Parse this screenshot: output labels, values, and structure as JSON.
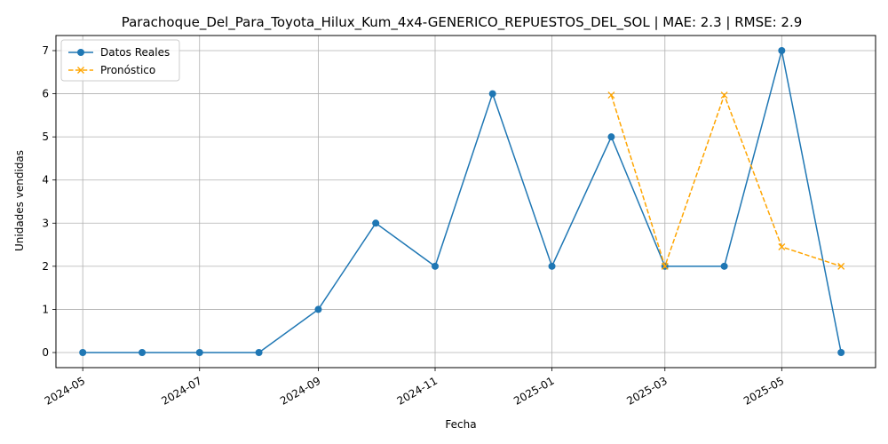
{
  "chart_data": {
    "type": "line",
    "title": "Parachoque_Del_Para_Toyota_Hilux_Kum_4x4-GENERICO_REPUESTOS_DEL_SOL | MAE: 2.3 | RMSE: 2.9",
    "xlabel": "Fecha",
    "ylabel": "Unidades vendidas",
    "ylim": [
      -0.35,
      7.35
    ],
    "xlim": [
      "2024-04-17",
      "2025-06-19"
    ],
    "x_ticks": [
      "2024-05",
      "2024-07",
      "2024-09",
      "2024-11",
      "2025-01",
      "2025-03",
      "2025-05"
    ],
    "y_ticks": [
      0,
      1,
      2,
      3,
      4,
      5,
      6,
      7
    ],
    "grid": true,
    "legend_position": "top-left",
    "series": [
      {
        "name": "Datos Reales",
        "color": "#1f77b4",
        "marker": "circle",
        "line_style": "solid",
        "x": [
          "2024-05-01",
          "2024-06-01",
          "2024-07-01",
          "2024-08-01",
          "2024-09-01",
          "2024-10-01",
          "2024-11-01",
          "2024-12-01",
          "2025-01-01",
          "2025-02-01",
          "2025-03-01",
          "2025-04-01",
          "2025-05-01",
          "2025-06-01"
        ],
        "values": [
          0,
          0,
          0,
          0,
          1,
          3,
          2,
          6,
          2,
          5,
          2,
          2,
          7,
          0
        ]
      },
      {
        "name": "Pronóstico",
        "color": "#ffa500",
        "marker": "x",
        "line_style": "dashed",
        "x": [
          "2025-02-01",
          "2025-03-01",
          "2025-04-01",
          "2025-05-01",
          "2025-06-01"
        ],
        "values": [
          5.97,
          2.0,
          5.97,
          2.45,
          2.0
        ]
      }
    ]
  }
}
